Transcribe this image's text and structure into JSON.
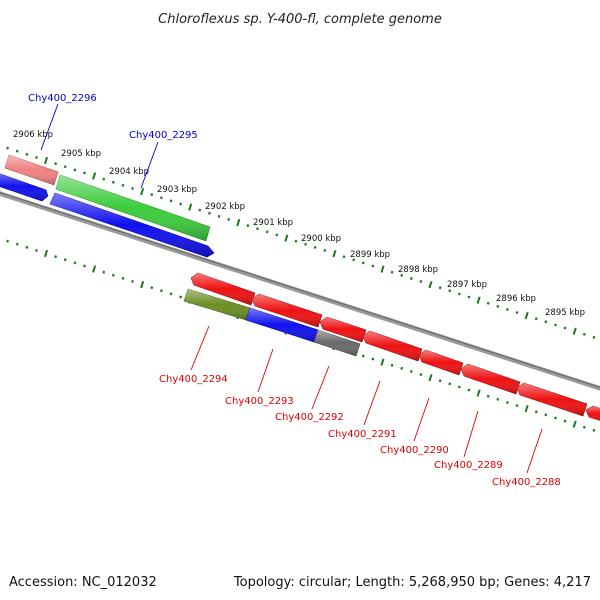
{
  "title": "Chloroflexus sp. Y-400-fl, complete genome",
  "footer": {
    "accession": "Accession: NC_012032",
    "summary": "Topology: circular; Length: 5,268,950 bp; Genes: 4,217"
  },
  "ticks": [
    "2906 kbp",
    "2905 kbp",
    "2904 kbp",
    "2903 kbp",
    "2902 kbp",
    "2901 kbp",
    "2900 kbp",
    "2899 kbp",
    "2898 kbp",
    "2897 kbp",
    "2896 kbp",
    "2895 kbp"
  ],
  "genes_forward": [
    {
      "label": "Chy400_2296",
      "color": "#f08080"
    },
    {
      "label": "Chy400_2295",
      "color": "#3ccc3c"
    }
  ],
  "genes_reverse": [
    {
      "label": "Chy400_2294",
      "color": "#6b8e23"
    },
    {
      "label": "Chy400_2293",
      "color": "#1010ee"
    },
    {
      "label": "Chy400_2292",
      "color": "#696969"
    },
    {
      "label": "Chy400_2291",
      "color": "#ee1111"
    },
    {
      "label": "Chy400_2290",
      "color": "#ee1111"
    },
    {
      "label": "Chy400_2289",
      "color": "#ee1111"
    },
    {
      "label": "Chy400_2288",
      "color": "#ee1111"
    }
  ],
  "colors": {
    "forward_label": "#0000cc",
    "reverse_label": "#dd0000",
    "tick": "#1a7a1a",
    "backbone": "#8a8a8a",
    "blue_feature": "#1010ee",
    "red_feature": "#ee1111"
  }
}
